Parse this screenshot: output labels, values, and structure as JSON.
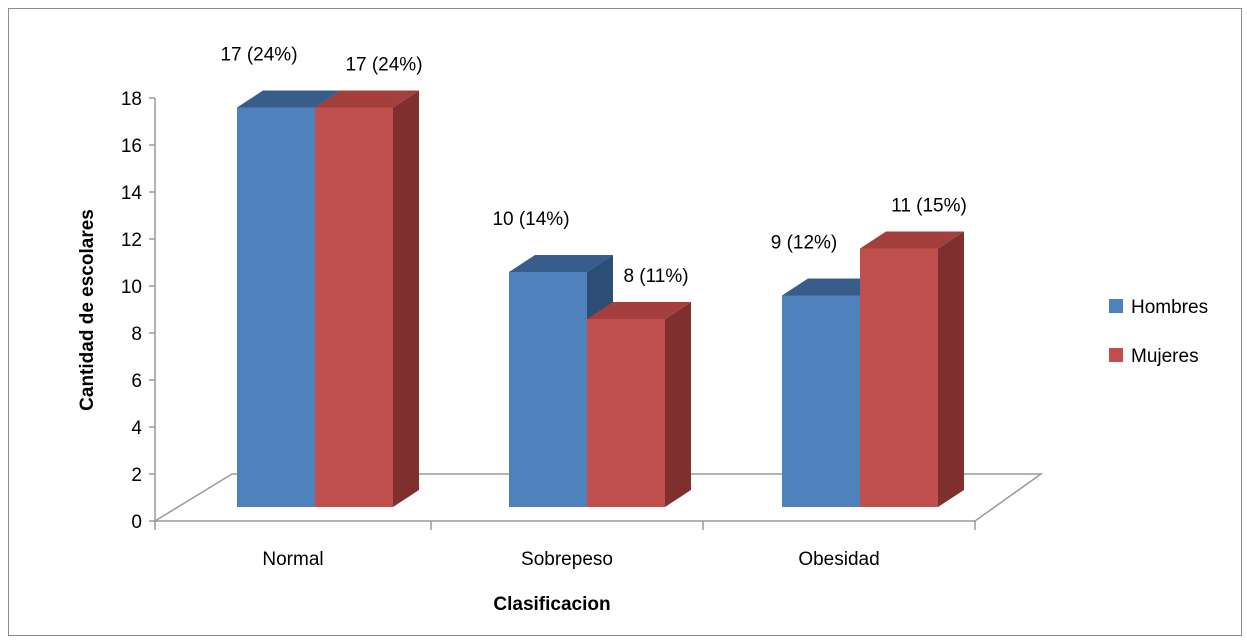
{
  "chart_data": {
    "type": "bar",
    "categories": [
      "Normal",
      "Sobrepeso",
      "Obesidad"
    ],
    "series": [
      {
        "name": "Hombres",
        "values": [
          17,
          10,
          9
        ],
        "labels": [
          "17 (24%)",
          "10 (14%)",
          "9 (12%)"
        ],
        "color": "#4F81BD",
        "top_color": "#385D8A",
        "side_color": "#2C4D75"
      },
      {
        "name": "Mujeres",
        "values": [
          17,
          8,
          11
        ],
        "labels": [
          "17 (24%)",
          "8 (11%)",
          "11 (15%)"
        ],
        "color": "#C0504D",
        "top_color": "#A33F3C",
        "side_color": "#7F302E"
      }
    ],
    "title": "",
    "xlabel": "Clasificacion",
    "ylabel": "Cantidad de escolares",
    "ylim": [
      0,
      18
    ],
    "yticks": [
      0,
      2,
      4,
      6,
      8,
      10,
      12,
      14,
      16,
      18
    ],
    "grid": false,
    "legend_position": "right",
    "style": "3d-column"
  }
}
